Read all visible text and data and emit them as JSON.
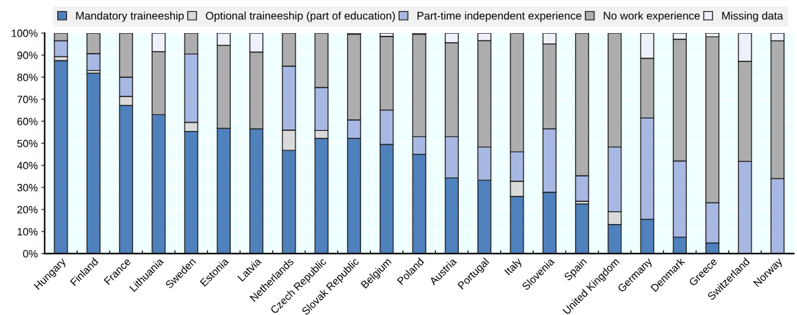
{
  "chart_data": {
    "type": "bar",
    "stacked": true,
    "categories": [
      "Hungary",
      "Finland",
      "France",
      "Lithuania",
      "Sweden",
      "Estonia",
      "Latvia",
      "Netherlands",
      "Czech Republic",
      "Slovak Republic",
      "Belgium",
      "Poland",
      "Austria",
      "Portugal",
      "Italy",
      "Slovenia",
      "Spain",
      "United Kingdom",
      "Germany",
      "Denmark",
      "Greece",
      "Switzerland",
      "Norway"
    ],
    "series": [
      {
        "name": "Mandatory traineeship",
        "color": "#4f81bd",
        "values": [
          87.5,
          81.8,
          67.2,
          63,
          55.4,
          56.8,
          56.6,
          46.8,
          52.3,
          52.3,
          49.5,
          45,
          34.3,
          33.3,
          25.9,
          27.8,
          22.5,
          13.2,
          15.5,
          7.4,
          4.8,
          0,
          0
        ]
      },
      {
        "name": "Optional traineeship (part of education)",
        "color": "#dadada",
        "values": [
          1.8,
          1.2,
          4.1,
          0,
          4.1,
          0,
          0,
          9.2,
          3.5,
          0,
          0,
          0,
          0,
          0,
          6.9,
          0,
          1.2,
          5.8,
          0,
          0,
          0,
          0,
          0
        ]
      },
      {
        "name": "Part-time independent experience",
        "color": "#a7b8e2",
        "values": [
          7.2,
          7.7,
          8.7,
          0,
          31,
          0,
          0,
          29,
          19.5,
          8.3,
          15.6,
          8,
          18.7,
          15,
          13.3,
          28.8,
          11.6,
          29.3,
          46,
          34.6,
          18.2,
          41.8,
          34
        ]
      },
      {
        "name": "No work experience",
        "color": "#adadad",
        "values": [
          3.5,
          9.3,
          20,
          28.6,
          9.5,
          37.7,
          34.8,
          15,
          24.7,
          38.9,
          33.4,
          46.5,
          42.6,
          48.3,
          53.9,
          38.5,
          64.7,
          51.7,
          27.1,
          55.2,
          75.3,
          45.4,
          62.5
        ]
      },
      {
        "name": "Missing data",
        "color": "#eef1f9",
        "values": [
          0,
          0,
          0,
          8.4,
          0,
          5.5,
          8.6,
          0,
          0,
          0.5,
          1.5,
          0.5,
          4.4,
          3.4,
          0,
          4.9,
          0,
          0,
          11.4,
          2.8,
          1.7,
          12.8,
          3.5
        ]
      }
    ],
    "ylim": [
      0,
      100
    ],
    "yticks": [
      {
        "value": 0,
        "label": "0%"
      },
      {
        "value": 10,
        "label": "10%"
      },
      {
        "value": 20,
        "label": "20%"
      },
      {
        "value": 30,
        "label": "30%"
      },
      {
        "value": 40,
        "label": "40%"
      },
      {
        "value": 50,
        "label": "50%"
      },
      {
        "value": 60,
        "label": "60%"
      },
      {
        "value": 70,
        "label": "70%"
      },
      {
        "value": 80,
        "label": "80%"
      },
      {
        "value": 90,
        "label": "90%"
      },
      {
        "value": 100,
        "label": "100%"
      }
    ],
    "grid": "y",
    "legend": "top"
  }
}
